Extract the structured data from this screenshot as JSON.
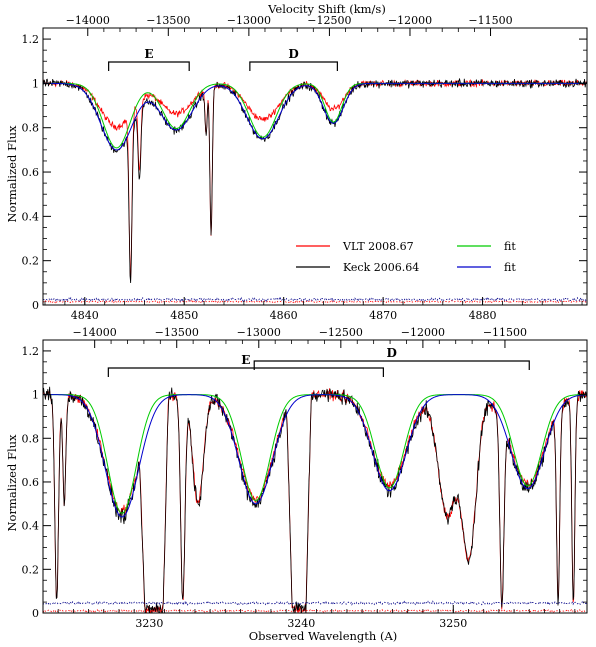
{
  "figure": {
    "top_axis_title": "Velocity Shift (km/s)",
    "ylabel": "Normalized Flux",
    "bottom_axis_title": "Observed Wavelength (A)"
  },
  "colors": {
    "vlt": "#ff0000",
    "keck": "#000000",
    "fit_green": "#00cc00",
    "fit_blue": "#0000cc",
    "error_vlt": "#ff0000",
    "error_keck": "#000088"
  },
  "legend": {
    "vlt_label": "VLT 2008.67",
    "keck_label": "Keck 2006.64",
    "fit_label_green": "fit",
    "fit_label_blue": "fit"
  },
  "chart_data": [
    {
      "type": "line",
      "panel": "top",
      "xlabel": "",
      "ylabel": "Normalized Flux",
      "xlim": [
        4835.8,
        4890.5
      ],
      "ylim": [
        0,
        1.25
      ],
      "x_ticks": [
        4840,
        4850,
        4860,
        4870,
        4880
      ],
      "x_tick_labels": [
        "4840",
        "4850",
        "4860",
        "4870",
        "4880"
      ],
      "y_ticks": [
        0,
        0.2,
        0.4,
        0.6,
        0.8,
        1,
        1.2
      ],
      "y_tick_labels": [
        "0",
        "0.2",
        "0.4",
        "0.6",
        "0.8",
        "1",
        "1.2"
      ],
      "top_axis": {
        "title": "Velocity Shift (km/s)",
        "ticks_wavelength": [
          4840.3,
          4848.4,
          4856.5,
          4864.6,
          4872.7,
          4880.8
        ],
        "tick_labels": [
          "−14000",
          "−13500",
          "−13000",
          "−12500",
          "−12000",
          "−11500"
        ]
      },
      "components": [
        {
          "label": "E",
          "start": 4842.4,
          "end": 4850.5
        },
        {
          "label": "D",
          "start": 4856.6,
          "end": 4865.4
        }
      ],
      "troughs": [
        {
          "center": 4843.2,
          "width": 1.6,
          "depth": 0.3
        },
        {
          "center": 4849.2,
          "width": 1.6,
          "depth": 0.21
        },
        {
          "center": 4857.9,
          "width": 1.6,
          "depth": 0.25
        },
        {
          "center": 4865.0,
          "width": 1.0,
          "depth": 0.18
        }
      ],
      "narrow_lines": [
        {
          "center": 4844.6,
          "width": 0.14,
          "depth": 0.88
        },
        {
          "center": 4845.5,
          "width": 0.14,
          "depth": 0.35
        },
        {
          "center": 4852.7,
          "width": 0.12,
          "depth": 0.68
        },
        {
          "center": 4852.2,
          "width": 0.1,
          "depth": 0.22
        }
      ],
      "vlt_trough_scale": 0.65,
      "series": [
        {
          "name": "VLT 2008.67"
        },
        {
          "name": "Keck 2006.64"
        },
        {
          "name": "fit"
        },
        {
          "name": "fit"
        }
      ],
      "error_levels": {
        "vlt": 0.015,
        "keck": 0.025
      }
    },
    {
      "type": "line",
      "panel": "bottom",
      "xlabel": "Observed Wavelength (A)",
      "ylabel": "Normalized Flux",
      "xlim": [
        3223.0,
        3258.8
      ],
      "ylim": [
        0,
        1.25
      ],
      "x_ticks": [
        3230,
        3240,
        3250
      ],
      "x_tick_labels": [
        "3230",
        "3240",
        "3250"
      ],
      "y_ticks": [
        0,
        0.2,
        0.4,
        0.6,
        0.8,
        1,
        1.2
      ],
      "y_tick_labels": [
        "0",
        "0.2",
        "0.4",
        "0.6",
        "0.8",
        "1",
        "1.2"
      ],
      "top_axis": {
        "ticks_wavelength": [
          3226.4,
          3231.8,
          3237.2,
          3242.6,
          3248.0,
          3253.4
        ],
        "tick_labels": [
          "−14000",
          "−13500",
          "−13000",
          "−12500",
          "−12000",
          "−11500"
        ]
      },
      "components": [
        {
          "label": "E",
          "start": 3227.3,
          "end": 3245.4
        },
        {
          "label": "D",
          "start": 3236.9,
          "end": 3255.0
        }
      ],
      "troughs": [
        {
          "center": 3228.2,
          "width": 1.1,
          "depth": 0.56
        },
        {
          "center": 3237.0,
          "width": 1.1,
          "depth": 0.5
        },
        {
          "center": 3245.8,
          "width": 1.1,
          "depth": 0.44
        },
        {
          "center": 3254.9,
          "width": 1.1,
          "depth": 0.43
        }
      ],
      "saturated_lines": [
        {
          "from": 3229.7,
          "to": 3230.9
        },
        {
          "from": 3239.4,
          "to": 3240.3
        }
      ],
      "narrow_lines": [
        {
          "center": 3223.9,
          "width": 0.12,
          "depth": 0.95
        },
        {
          "center": 3224.4,
          "width": 0.1,
          "depth": 0.5
        },
        {
          "center": 3232.2,
          "width": 0.14,
          "depth": 0.95
        },
        {
          "center": 3233.2,
          "width": 0.35,
          "depth": 0.5
        },
        {
          "center": 3249.6,
          "width": 0.6,
          "depth": 0.55
        },
        {
          "center": 3251.0,
          "width": 0.5,
          "depth": 0.75
        },
        {
          "center": 3253.2,
          "width": 0.13,
          "depth": 0.97
        },
        {
          "center": 3256.9,
          "width": 0.1,
          "depth": 0.95
        },
        {
          "center": 3257.9,
          "width": 0.1,
          "depth": 0.95
        }
      ],
      "vlt_trough_scale": 0.95,
      "series": [
        {
          "name": "VLT 2008.67"
        },
        {
          "name": "Keck 2006.64"
        },
        {
          "name": "fit"
        },
        {
          "name": "fit"
        }
      ],
      "error_levels": {
        "vlt": 0.01,
        "keck": 0.045
      }
    }
  ]
}
